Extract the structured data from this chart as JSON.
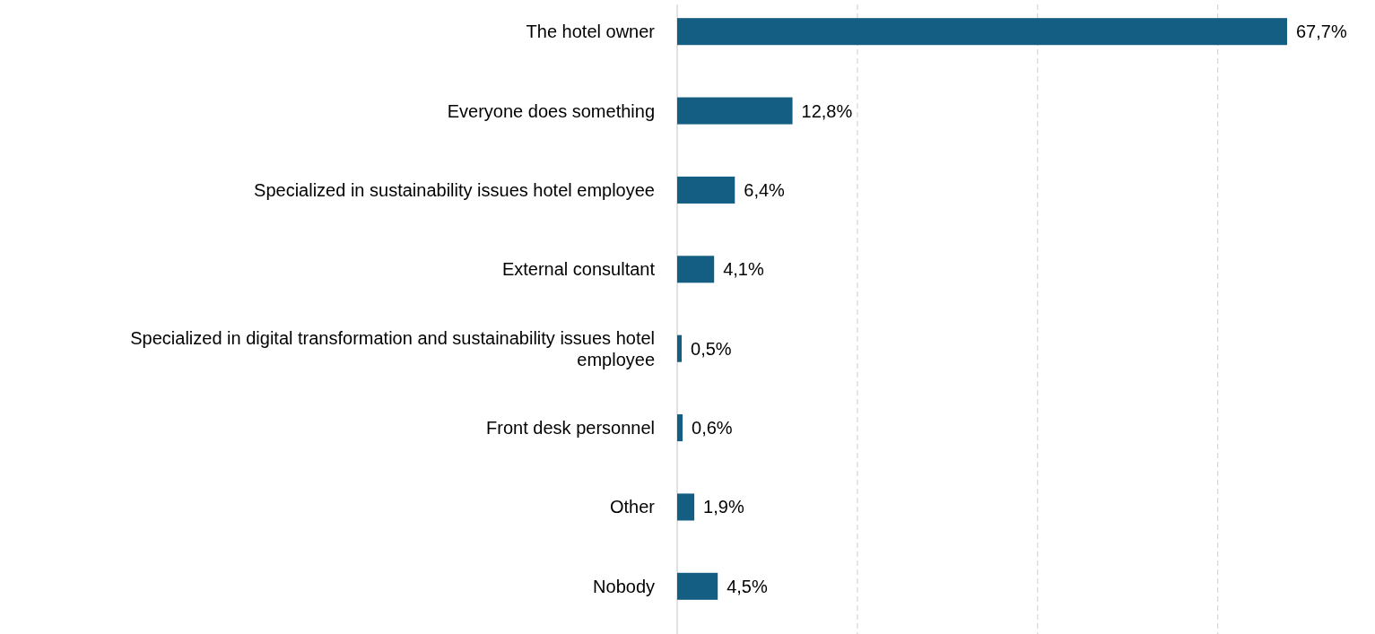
{
  "chart_data": {
    "type": "bar",
    "orientation": "horizontal",
    "categories": [
      "The hotel owner",
      "Everyone does something",
      "Specialized in sustainability issues hotel employee",
      "External consultant",
      "Specialized in digital transformation and sustainability issues hotel employee",
      "Front desk personnel",
      "Other",
      "Nobody"
    ],
    "values": [
      67.7,
      12.8,
      6.4,
      4.1,
      0.5,
      0.6,
      1.9,
      4.5
    ],
    "value_labels": [
      "67,7%",
      "12,8%",
      "6,4%",
      "4,1%",
      "0,5%",
      "0,6%",
      "1,9%",
      "4,5%"
    ],
    "color": "#135e82",
    "xticks": [
      {
        "value": 0,
        "label": null
      },
      {
        "value": 20,
        "label": null
      },
      {
        "value": 40,
        "label": null
      },
      {
        "value": 60,
        "label": null
      }
    ],
    "grid": "x",
    "tick_labels": "y"
  }
}
